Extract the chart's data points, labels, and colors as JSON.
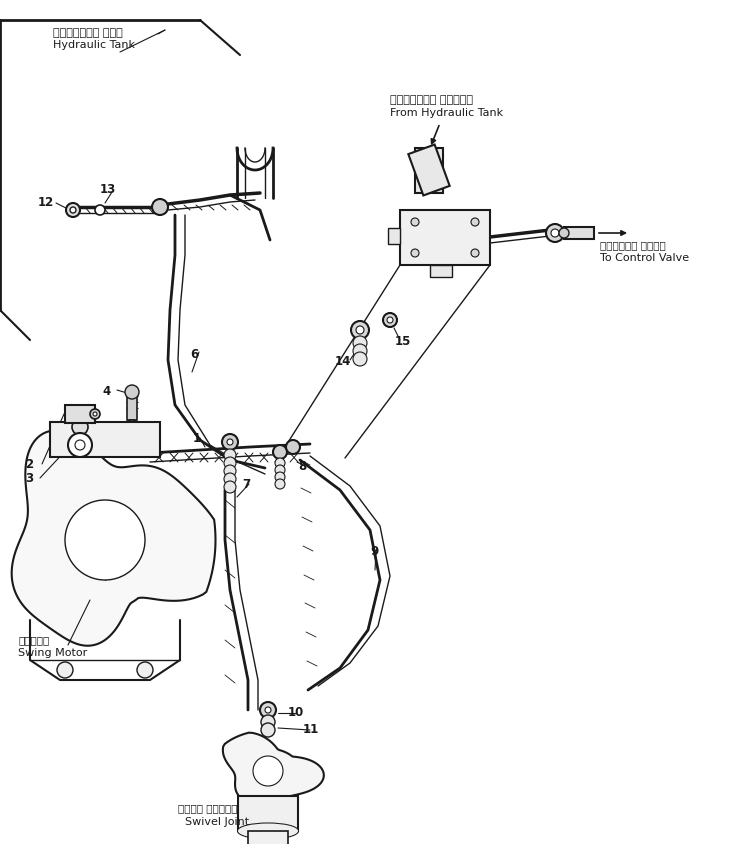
{
  "bg_color": "#ffffff",
  "line_color": "#1a1a1a",
  "labels": {
    "hydraulic_tank_jp": "ハイドロリック タンク",
    "hydraulic_tank_en": "Hydraulic Tank",
    "from_hydraulic_tank_jp": "ハイドロリック タンカから",
    "from_hydraulic_tank_en": "From Hydraulic Tank",
    "to_control_valve_jp": "コントロール バルブへ",
    "to_control_valve_en": "To Control Valve",
    "swing_motor_jp": "旋回モータ",
    "swing_motor_en": "Swing Motor",
    "swivel_joint_jp": "スイベル ジョイント",
    "swivel_joint_en": "Swivel Joint"
  },
  "figsize": [
    7.35,
    8.44
  ],
  "dpi": 100
}
